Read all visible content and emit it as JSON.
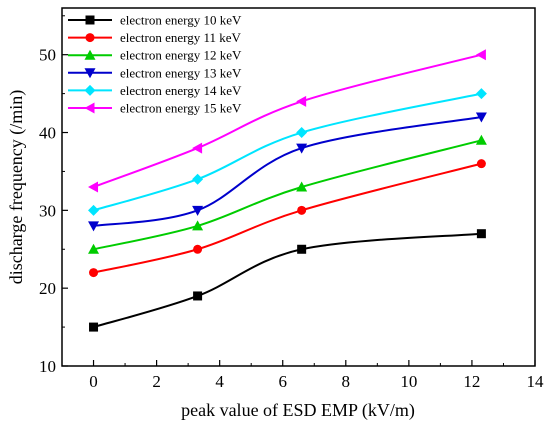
{
  "chart_data": {
    "type": "line",
    "xlabel": "peak value of ESD EMP (kV/m)",
    "ylabel": "discharge frequency (/min)",
    "xlim": [
      -1,
      14
    ],
    "ylim": [
      10,
      56
    ],
    "xticks": [
      0,
      2,
      4,
      6,
      8,
      10,
      12,
      14
    ],
    "yticks": [
      10,
      20,
      30,
      40,
      50
    ],
    "legend_position": "top-left",
    "grid": false,
    "x": [
      0,
      3.3,
      6.6,
      12.3
    ],
    "series": [
      {
        "name": "electron energy 10 keV",
        "values": [
          15,
          19,
          25,
          27
        ],
        "color": "#000000",
        "marker": "square"
      },
      {
        "name": "electron energy 11 keV",
        "values": [
          22,
          25,
          30,
          36
        ],
        "color": "#ff0000",
        "marker": "circle"
      },
      {
        "name": "electron energy 12 keV",
        "values": [
          25,
          28,
          33,
          39
        ],
        "color": "#00cc00",
        "marker": "triangle-up"
      },
      {
        "name": "electron energy 13 keV",
        "values": [
          28,
          30,
          38,
          42
        ],
        "color": "#0000cc",
        "marker": "triangle-down"
      },
      {
        "name": "electron energy 14 keV",
        "values": [
          30,
          34,
          40,
          45
        ],
        "color": "#00e5ff",
        "marker": "diamond"
      },
      {
        "name": "electron energy 15 keV",
        "values": [
          33,
          38,
          44,
          50
        ],
        "color": "#ff00ff",
        "marker": "triangle-left"
      }
    ]
  }
}
